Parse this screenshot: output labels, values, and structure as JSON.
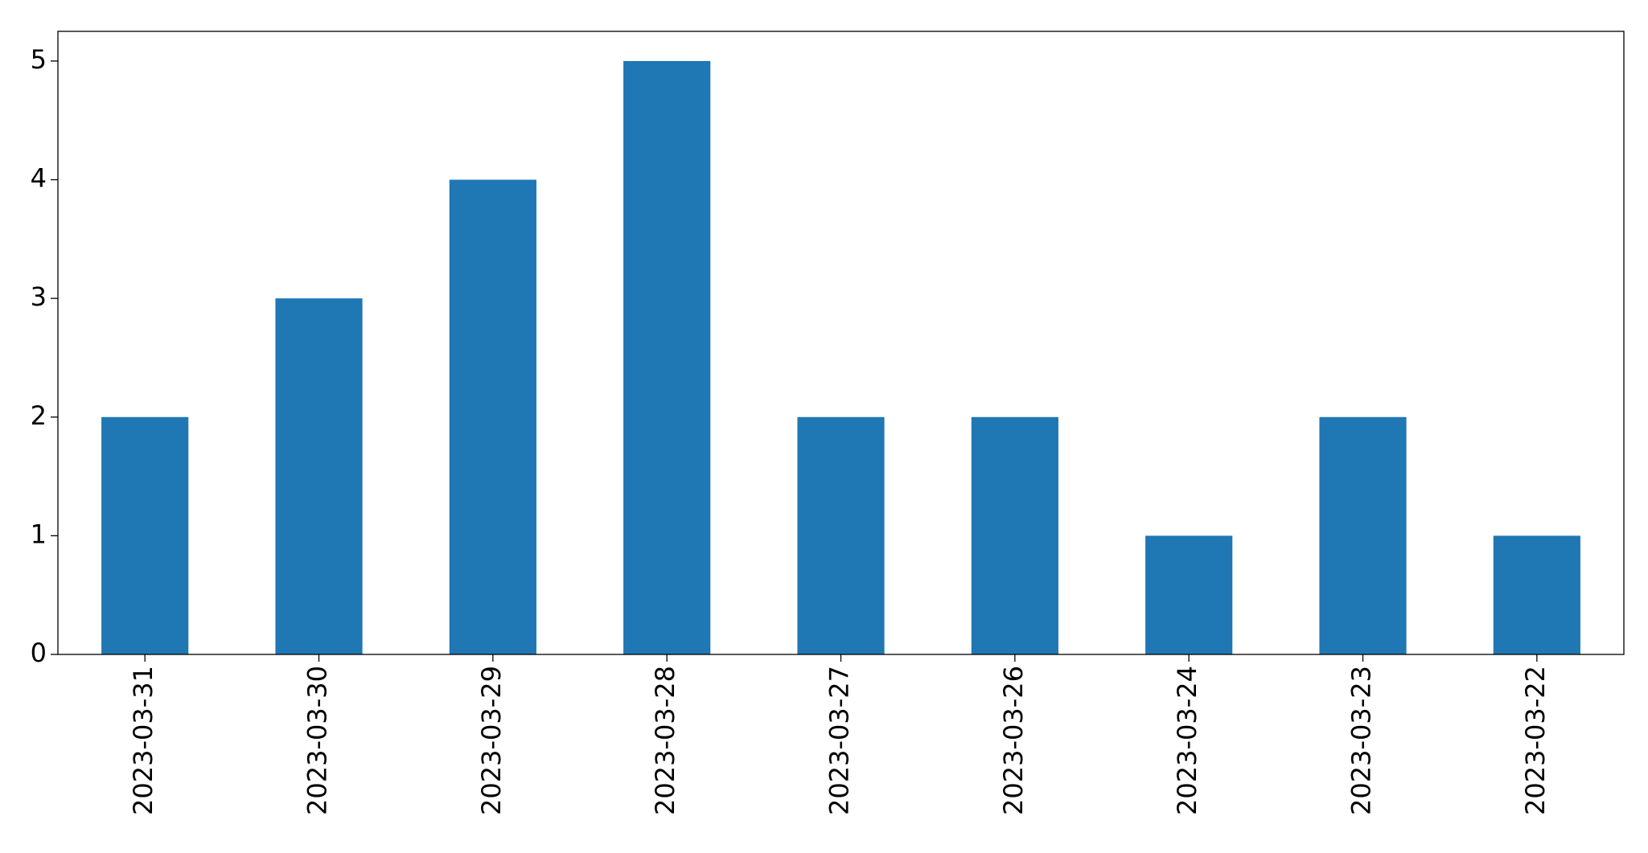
{
  "chart_data": {
    "type": "bar",
    "categories": [
      "2023-03-31",
      "2023-03-30",
      "2023-03-29",
      "2023-03-28",
      "2023-03-27",
      "2023-03-26",
      "2023-03-24",
      "2023-03-23",
      "2023-03-22"
    ],
    "values": [
      2,
      3,
      4,
      5,
      2,
      2,
      1,
      2,
      1
    ],
    "color": "#1f77b4",
    "ylim": [
      0,
      5.25
    ],
    "yticks": [
      0,
      1,
      2,
      3,
      4,
      5
    ],
    "grid": false
  }
}
